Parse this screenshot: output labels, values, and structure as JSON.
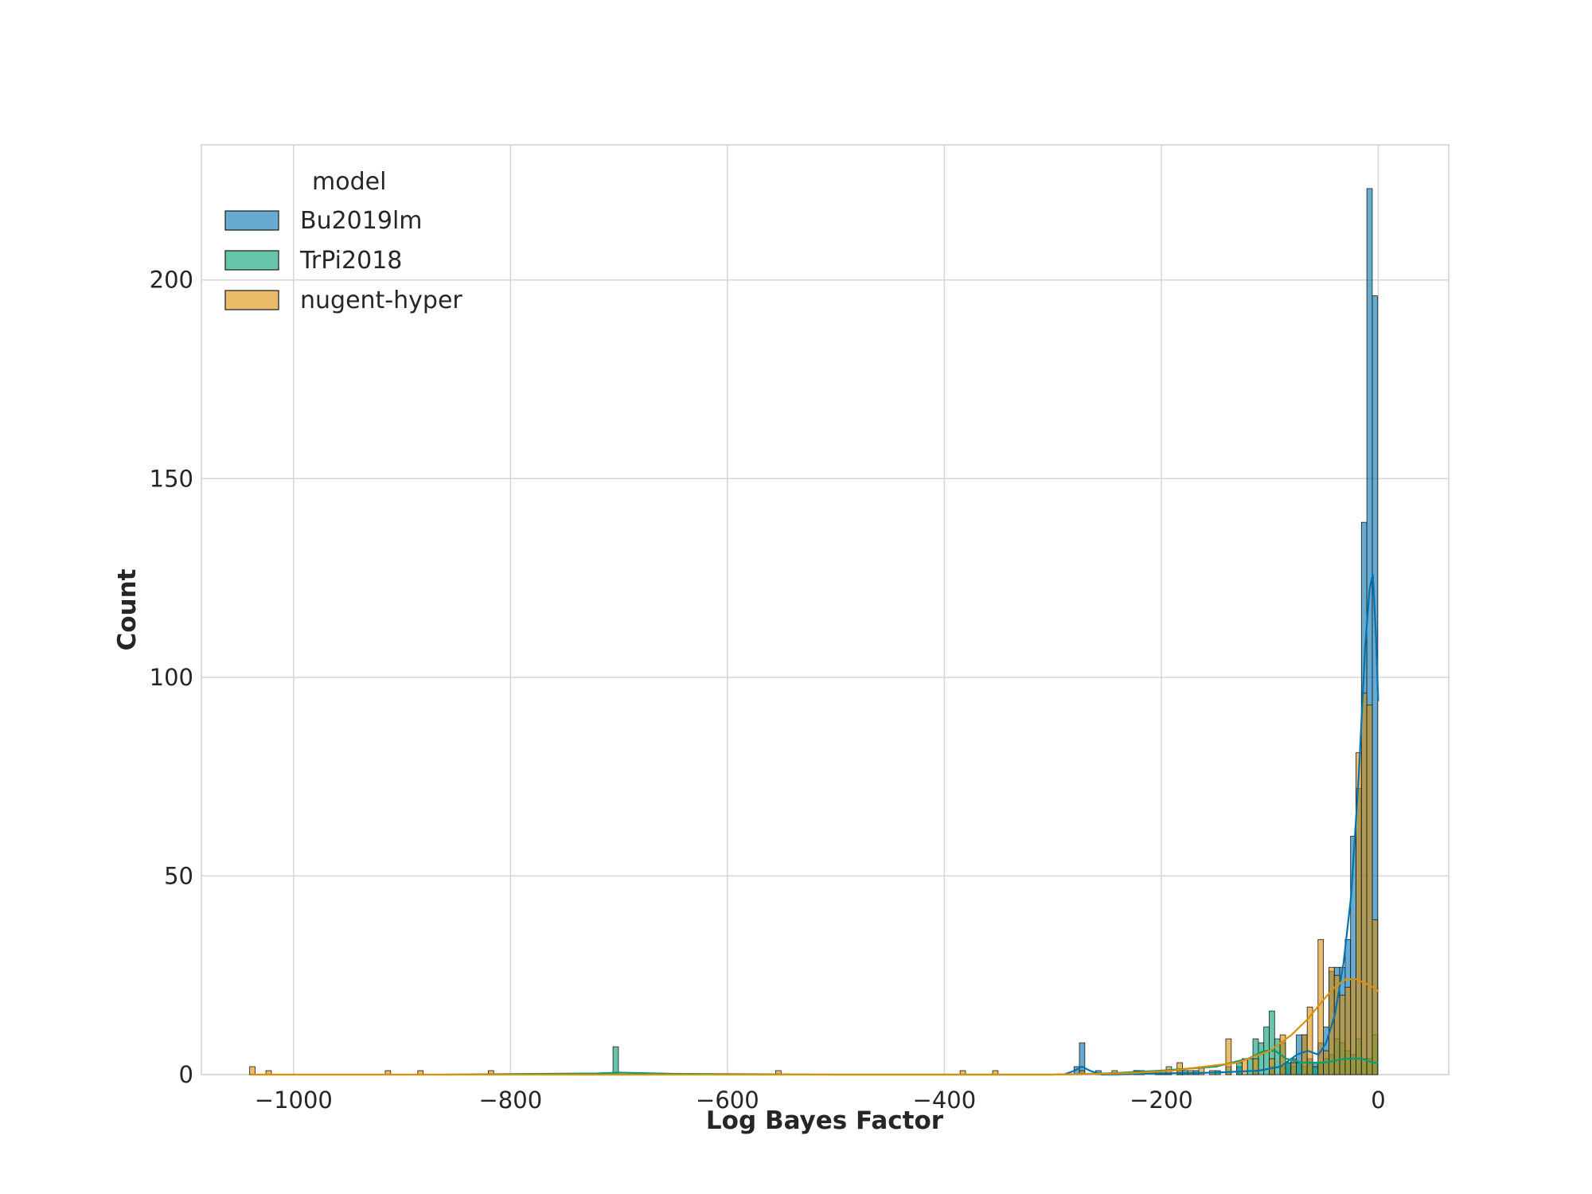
{
  "chart_data": {
    "type": "bar",
    "subtype": "histogram-with-kde",
    "title": "",
    "xlabel": "Log Bayes Factor",
    "ylabel": "Count",
    "xlim": [
      -1085,
      65
    ],
    "ylim": [
      0,
      234
    ],
    "x_ticks": [
      -1000,
      -800,
      -600,
      -400,
      -200,
      0
    ],
    "x_tick_labels": [
      "−1000",
      "−800",
      "−600",
      "−400",
      "−200",
      "0"
    ],
    "y_ticks": [
      0,
      50,
      100,
      150,
      200
    ],
    "y_tick_labels": [
      "0",
      "50",
      "100",
      "150",
      "200"
    ],
    "grid": true,
    "legend": {
      "title": "model",
      "placement": "upper-left"
    },
    "bin_width": 5,
    "series": [
      {
        "name": "Bu2019lm",
        "color": "#0173b2",
        "bins": [
          [
            -278,
            2
          ],
          [
            -273,
            8
          ],
          [
            -258,
            1
          ],
          [
            -223,
            1
          ],
          [
            -183,
            1
          ],
          [
            -168,
            1
          ],
          [
            -128,
            2
          ],
          [
            -113,
            1
          ],
          [
            -98,
            2
          ],
          [
            -88,
            2
          ],
          [
            -83,
            3
          ],
          [
            -78,
            4
          ],
          [
            -73,
            10
          ],
          [
            -68,
            10
          ],
          [
            -63,
            4
          ],
          [
            -58,
            3
          ],
          [
            -53,
            8
          ],
          [
            -48,
            12
          ],
          [
            -43,
            26
          ],
          [
            -38,
            27
          ],
          [
            -33,
            27
          ],
          [
            -28,
            34
          ],
          [
            -23,
            60
          ],
          [
            -18,
            72
          ],
          [
            -13,
            139
          ],
          [
            -8,
            223
          ],
          [
            -3,
            196
          ]
        ],
        "kde": [
          [
            -290,
            0
          ],
          [
            -280,
            1
          ],
          [
            -273,
            2
          ],
          [
            -266,
            1
          ],
          [
            -255,
            0
          ],
          [
            -200,
            0.3
          ],
          [
            -150,
            0.5
          ],
          [
            -110,
            1
          ],
          [
            -90,
            2
          ],
          [
            -75,
            5
          ],
          [
            -65,
            6
          ],
          [
            -55,
            5
          ],
          [
            -48,
            8
          ],
          [
            -40,
            15
          ],
          [
            -32,
            28
          ],
          [
            -25,
            45
          ],
          [
            -18,
            75
          ],
          [
            -12,
            108
          ],
          [
            -8,
            122
          ],
          [
            -5,
            126
          ],
          [
            -2,
            110
          ],
          [
            0,
            94
          ]
        ]
      },
      {
        "name": "TrPi2018",
        "color": "#029e73",
        "bins": [
          [
            -703,
            7
          ],
          [
            -223,
            1
          ],
          [
            -198,
            1
          ],
          [
            -178,
            1
          ],
          [
            -148,
            1
          ],
          [
            -138,
            2
          ],
          [
            -128,
            3
          ],
          [
            -118,
            4
          ],
          [
            -113,
            9
          ],
          [
            -108,
            8
          ],
          [
            -103,
            12
          ],
          [
            -98,
            16
          ],
          [
            -93,
            9
          ],
          [
            -88,
            8
          ],
          [
            -83,
            3
          ],
          [
            -78,
            2
          ],
          [
            -73,
            3
          ],
          [
            -68,
            2
          ],
          [
            -63,
            3
          ],
          [
            -58,
            2
          ],
          [
            -53,
            3
          ],
          [
            -48,
            4
          ],
          [
            -43,
            5
          ],
          [
            -38,
            9
          ],
          [
            -33,
            8
          ],
          [
            -28,
            6
          ],
          [
            -23,
            5
          ],
          [
            -18,
            9
          ],
          [
            -13,
            4
          ],
          [
            -8,
            4
          ],
          [
            -3,
            10
          ]
        ],
        "kde": [
          [
            -860,
            0
          ],
          [
            -720,
            0.3
          ],
          [
            -700,
            0.5
          ],
          [
            -650,
            0.2
          ],
          [
            -500,
            0
          ],
          [
            -300,
            0
          ],
          [
            -250,
            0.3
          ],
          [
            -200,
            1
          ],
          [
            -150,
            2
          ],
          [
            -120,
            4
          ],
          [
            -105,
            6
          ],
          [
            -95,
            6
          ],
          [
            -85,
            4
          ],
          [
            -70,
            3
          ],
          [
            -50,
            3
          ],
          [
            -30,
            4
          ],
          [
            -15,
            4
          ],
          [
            -5,
            3
          ],
          [
            0,
            3
          ]
        ]
      },
      {
        "name": "nugent-hyper",
        "color": "#de8f05",
        "bins": [
          [
            -1038,
            2
          ],
          [
            -1023,
            1
          ],
          [
            -913,
            1
          ],
          [
            -883,
            1
          ],
          [
            -818,
            1
          ],
          [
            -553,
            1
          ],
          [
            -383,
            1
          ],
          [
            -353,
            1
          ],
          [
            -273,
            1
          ],
          [
            -243,
            1
          ],
          [
            -218,
            1
          ],
          [
            -203,
            1
          ],
          [
            -193,
            2
          ],
          [
            -183,
            3
          ],
          [
            -173,
            1
          ],
          [
            -163,
            2
          ],
          [
            -153,
            1
          ],
          [
            -138,
            9
          ],
          [
            -123,
            4
          ],
          [
            -113,
            4
          ],
          [
            -98,
            4
          ],
          [
            -88,
            10
          ],
          [
            -78,
            3
          ],
          [
            -68,
            10
          ],
          [
            -63,
            17
          ],
          [
            -53,
            34
          ],
          [
            -48,
            6
          ],
          [
            -43,
            27
          ],
          [
            -38,
            25
          ],
          [
            -33,
            20
          ],
          [
            -28,
            22
          ],
          [
            -23,
            24
          ],
          [
            -18,
            81
          ],
          [
            -13,
            96
          ],
          [
            -8,
            93
          ],
          [
            -3,
            39
          ]
        ],
        "kde": [
          [
            -1040,
            0
          ],
          [
            -900,
            0
          ],
          [
            -600,
            0
          ],
          [
            -300,
            0
          ],
          [
            -250,
            0.2
          ],
          [
            -220,
            0.5
          ],
          [
            -190,
            1
          ],
          [
            -160,
            2
          ],
          [
            -130,
            3
          ],
          [
            -100,
            6
          ],
          [
            -80,
            10
          ],
          [
            -65,
            14
          ],
          [
            -50,
            19
          ],
          [
            -40,
            22
          ],
          [
            -30,
            24
          ],
          [
            -20,
            24
          ],
          [
            -12,
            23
          ],
          [
            -5,
            22
          ],
          [
            0,
            21
          ]
        ]
      }
    ]
  }
}
